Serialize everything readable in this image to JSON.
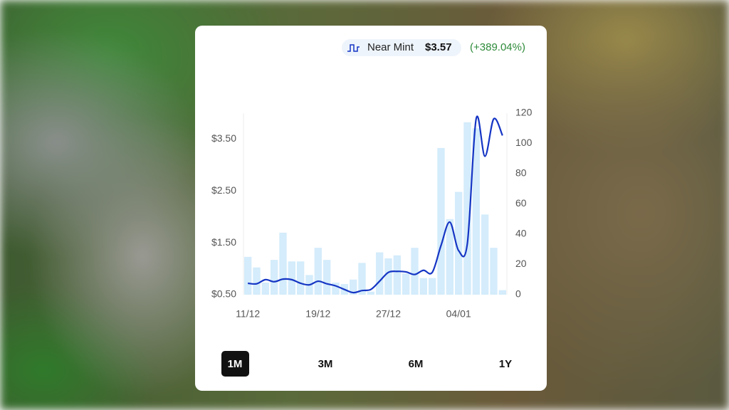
{
  "header": {
    "legend_label": "Near Mint",
    "price": "$3.57",
    "change": "(+389.04%)"
  },
  "ranges": [
    "1M",
    "3M",
    "6M",
    "1Y"
  ],
  "chart_data": {
    "type": "combo",
    "categories": [
      "11/12",
      null,
      null,
      null,
      null,
      null,
      null,
      null,
      "19/12",
      null,
      null,
      null,
      null,
      null,
      null,
      null,
      "27/12",
      null,
      null,
      null,
      null,
      null,
      null,
      null,
      "04/01",
      null,
      null,
      null,
      null,
      null
    ],
    "series": [
      {
        "kind": "bar",
        "axis": "y2",
        "color": "#d4ecfb",
        "values": [
          25,
          18,
          8,
          23,
          41,
          22,
          22,
          13,
          31,
          23,
          8,
          7,
          10,
          21,
          2,
          28,
          24,
          26,
          14,
          31,
          11,
          11,
          97,
          50,
          68,
          114,
          110,
          53,
          31,
          3
        ]
      },
      {
        "kind": "line",
        "axis": "y",
        "color": "#1535c4",
        "values": [
          0.72,
          0.71,
          0.79,
          0.75,
          0.8,
          0.79,
          0.72,
          0.69,
          0.76,
          0.71,
          0.67,
          0.6,
          0.54,
          0.58,
          0.6,
          0.76,
          0.93,
          0.95,
          0.94,
          0.89,
          0.97,
          0.93,
          1.45,
          1.9,
          1.35,
          1.49,
          3.89,
          3.17,
          3.89,
          3.57
        ]
      }
    ],
    "ylim": [
      0.5,
      4.0
    ],
    "yticks": [
      {
        "value": 0.5,
        "label": "$0.50"
      },
      {
        "value": 1.5,
        "label": "$1.50"
      },
      {
        "value": 2.5,
        "label": "$2.50"
      },
      {
        "value": 3.5,
        "label": "$3.50"
      }
    ],
    "y2lim": [
      0,
      120
    ],
    "y2ticks": [
      0,
      20,
      40,
      60,
      80,
      100,
      120
    ]
  }
}
